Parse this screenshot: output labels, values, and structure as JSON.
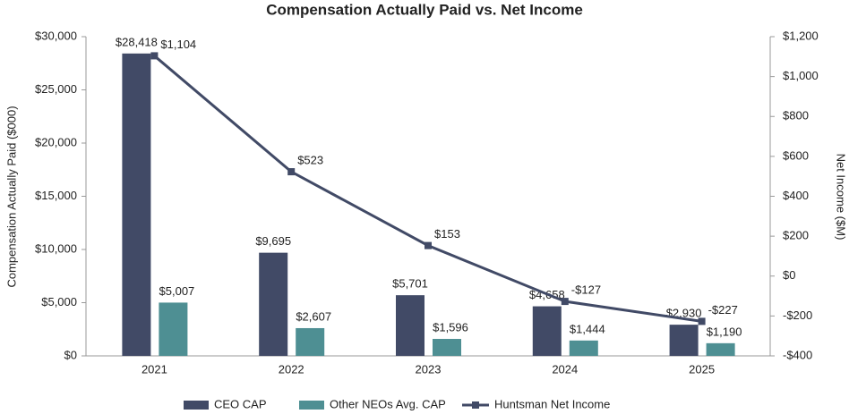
{
  "chart_data": {
    "type": "bar",
    "title": "Compensation Actually Paid vs. Net Income",
    "categories": [
      "2021",
      "2022",
      "2023",
      "2024",
      "2025"
    ],
    "ylabel": "Compensation Actually Paid ($000)",
    "y2label": "Net Income ($M)",
    "ylim": [
      0,
      30000
    ],
    "yticks": [
      {
        "value": 0,
        "label": "$0"
      },
      {
        "value": 5000,
        "label": "$5,000"
      },
      {
        "value": 10000,
        "label": "$10,000"
      },
      {
        "value": 15000,
        "label": "$15,000"
      },
      {
        "value": 20000,
        "label": "$20,000"
      },
      {
        "value": 25000,
        "label": "$25,000"
      },
      {
        "value": 30000,
        "label": "$30,000"
      }
    ],
    "y2lim": [
      -400,
      1200
    ],
    "y2ticks": [
      {
        "value": -400,
        "label": "-$400"
      },
      {
        "value": -200,
        "label": "-$200"
      },
      {
        "value": 0,
        "label": "$0"
      },
      {
        "value": 200,
        "label": "$200"
      },
      {
        "value": 400,
        "label": "$400"
      },
      {
        "value": 600,
        "label": "$600"
      },
      {
        "value": 800,
        "label": "$800"
      },
      {
        "value": 1000,
        "label": "$1,000"
      },
      {
        "value": 1200,
        "label": "$1,200"
      }
    ],
    "legend": "bottom",
    "series": [
      {
        "name": "CEO CAP",
        "color": "#414a66",
        "values": [
          28418,
          9695,
          5701,
          4658,
          2930
        ],
        "value_labels": [
          "$28,418",
          "$9,695",
          "$5,701",
          "$4,658",
          "$2,930"
        ]
      },
      {
        "name": "Other NEOs Avg. CAP",
        "color": "#4e8f93",
        "values": [
          5007,
          2607,
          1596,
          1444,
          1190
        ],
        "value_labels": [
          "$5,007",
          "$2,607",
          "$1,596",
          "$1,444",
          "$1,190"
        ]
      },
      {
        "name": "Huntsman Net Income",
        "color": "#414a66",
        "type": "line",
        "axis": "y2",
        "values": [
          1104,
          523,
          153,
          -127,
          -227
        ],
        "value_labels": [
          "$1,104",
          "$523",
          "$153",
          "-$127",
          "-$227"
        ]
      }
    ]
  }
}
